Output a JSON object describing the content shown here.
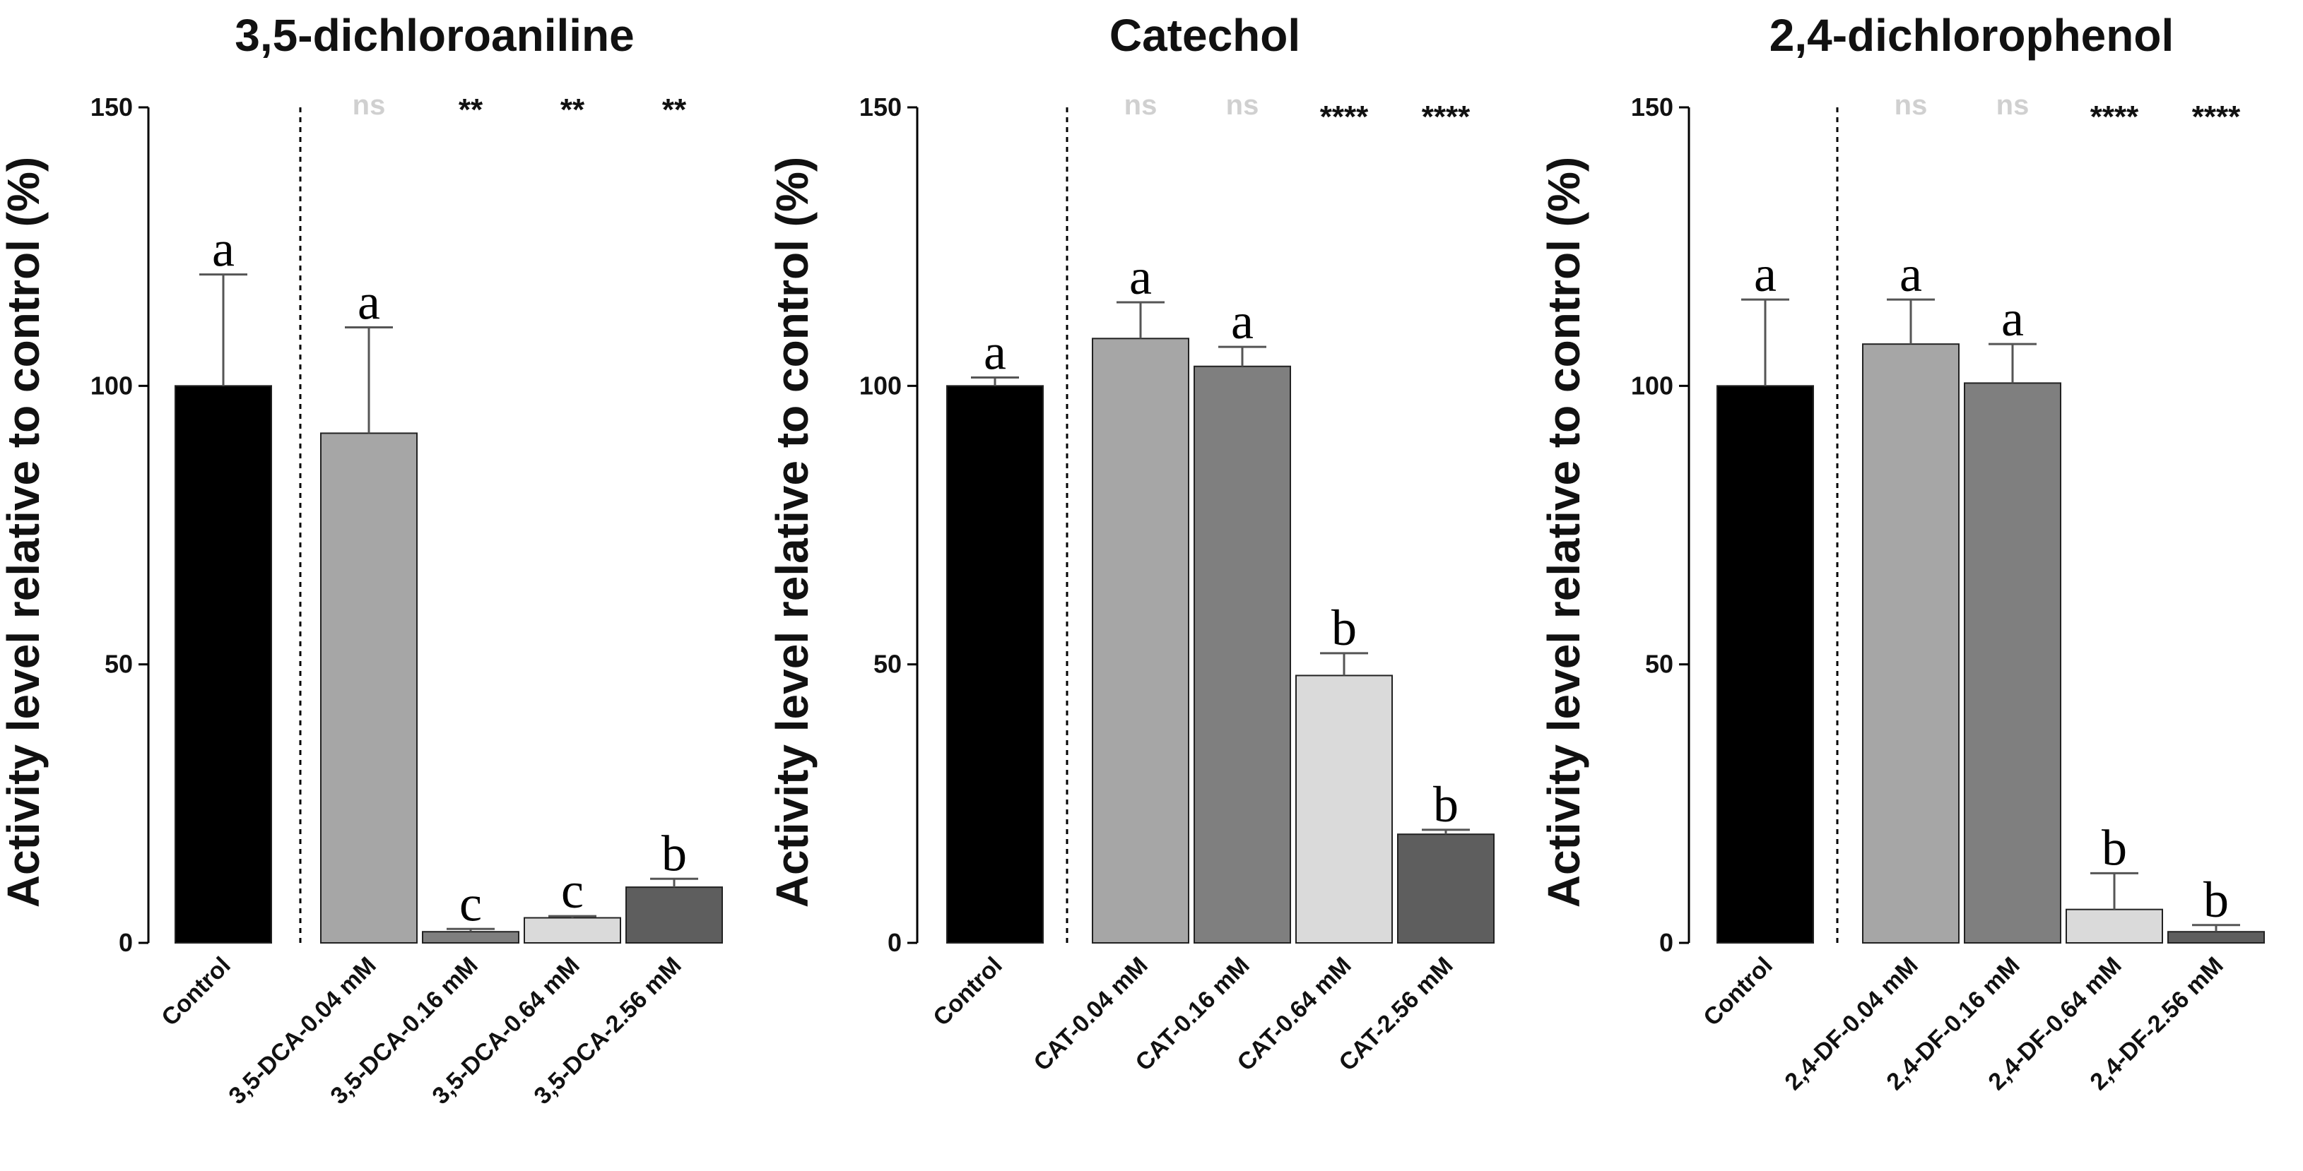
{
  "chart_data": [
    {
      "type": "bar",
      "title": "3,5-dichloroaniline",
      "ylabel": "Activity level relative to control (%)",
      "xlabel": "",
      "ylim": [
        0,
        150
      ],
      "yticks": [
        "0",
        "50",
        "100",
        "150"
      ],
      "categories": [
        "Control",
        "3,5-DCA-0.04 mM",
        "3,5-DCA-0.16 mM",
        "3,5-DCA-0.64 mM",
        "3,5-DCA-2.56 mM"
      ],
      "values": [
        100,
        91.5,
        2,
        4.5,
        10
      ],
      "errors": [
        20,
        19,
        0.5,
        0.3,
        1.5
      ],
      "letters": [
        "a",
        "a",
        "c",
        "c",
        "b"
      ],
      "significance": [
        "",
        "ns",
        "**",
        "**",
        "**"
      ],
      "colors": [
        "#000000",
        "#a6a6a6",
        "#7f7f7f",
        "#dadada",
        "#5e5e5e"
      ]
    },
    {
      "type": "bar",
      "title": "Catechol",
      "ylabel": "Activity level relative to control (%)",
      "xlabel": "",
      "ylim": [
        0,
        150
      ],
      "yticks": [
        "0",
        "50",
        "100",
        "150"
      ],
      "categories": [
        "Control",
        "CAT-0.04 mM",
        "CAT-0.16 mM",
        "CAT-0.64 mM",
        "CAT-2.56 mM"
      ],
      "values": [
        100,
        108.5,
        103.5,
        48,
        19.5
      ],
      "errors": [
        1.5,
        6.5,
        3.5,
        4,
        0.8
      ],
      "letters": [
        "a",
        "a",
        "a",
        "b",
        "b"
      ],
      "significance": [
        "",
        "ns",
        "ns",
        "****",
        "****"
      ],
      "colors": [
        "#000000",
        "#a6a6a6",
        "#7f7f7f",
        "#dadada",
        "#5e5e5e"
      ]
    },
    {
      "type": "bar",
      "title": "2,4-dichlorophenol",
      "ylabel": "Activity level relative to control (%)",
      "xlabel": "",
      "ylim": [
        0,
        150
      ],
      "yticks": [
        "0",
        "50",
        "100",
        "150"
      ],
      "categories": [
        "Control",
        "2,4-DF-0.04 mM",
        "2,4-DF-0.16 mM",
        "2,4-DF-0.64 mM",
        "2,4-DF-2.56 mM"
      ],
      "values": [
        100,
        107.5,
        100.5,
        6,
        2
      ],
      "errors": [
        15.5,
        8,
        7,
        6.5,
        1.2
      ],
      "letters": [
        "a",
        "a",
        "a",
        "b",
        "b"
      ],
      "significance": [
        "",
        "ns",
        "ns",
        "****",
        "****"
      ],
      "colors": [
        "#000000",
        "#a6a6a6",
        "#7f7f7f",
        "#dadada",
        "#5e5e5e"
      ]
    }
  ]
}
